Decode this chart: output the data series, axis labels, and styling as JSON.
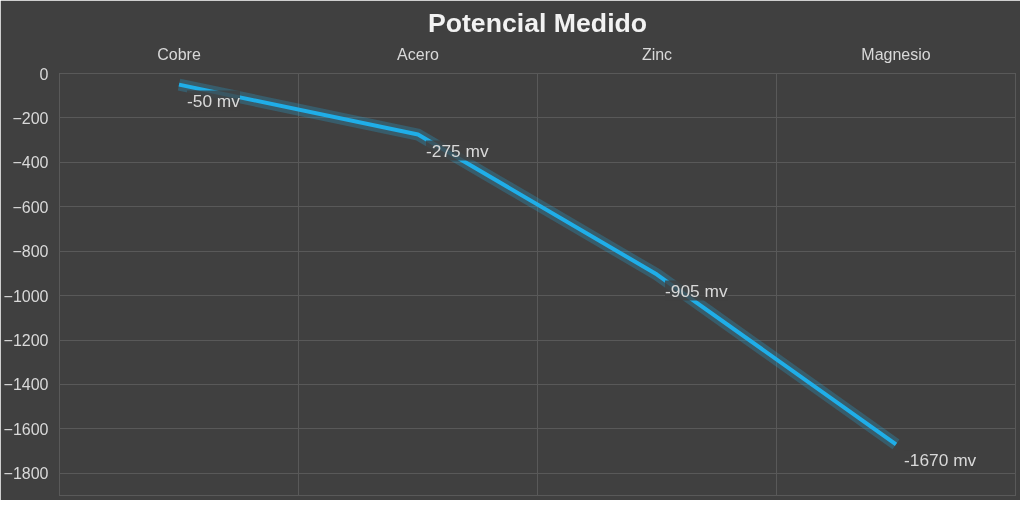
{
  "chart_data": {
    "type": "line",
    "title": "Potencial Medido",
    "categories": [
      "Cobre",
      "Acero",
      "Zinc",
      "Magnesio"
    ],
    "series": [
      {
        "color": "#1faee8",
        "values": [
          -50,
          -275,
          -905,
          -1670
        ],
        "value_labels": [
          "-50 mv",
          "-275 mv",
          "-905 mv",
          "-1670 mv"
        ]
      }
    ],
    "ylim": [
      -1900,
      0
    ],
    "yticks": [
      0,
      -200,
      -400,
      -600,
      -800,
      -1000,
      -1200,
      -1400,
      -1600,
      -1800
    ],
    "grid": true,
    "marker": "none",
    "line_style": "solid"
  }
}
